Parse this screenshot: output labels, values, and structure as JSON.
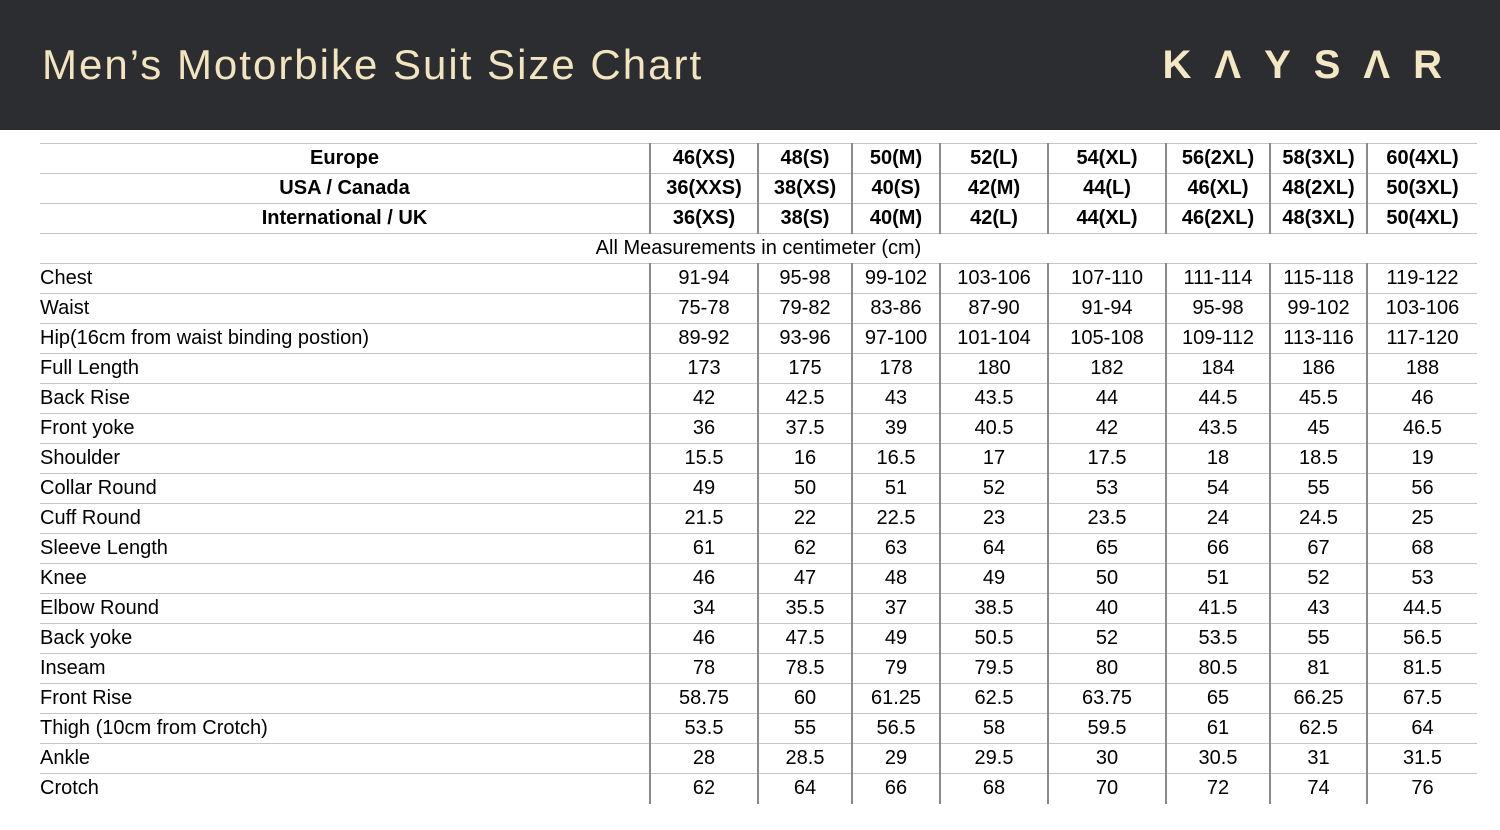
{
  "header": {
    "title": "Men’s Motorbike Suit Size Chart",
    "brand": "KAYSAR"
  },
  "colors": {
    "header_bg": "#2b2d31",
    "title_text": "#f1e4bf",
    "brand_text": "#f4e7c3",
    "grid_h": "#c6c6c6",
    "grid_v": "#8a8a8a"
  },
  "chart_data": {
    "type": "table",
    "title": "Men’s Motorbike Suit Size Chart",
    "header_rows": [
      {
        "label": "Europe",
        "values": [
          "46(XS)",
          "48(S)",
          "50(M)",
          "52(L)",
          "54(XL)",
          "56(2XL)",
          "58(3XL)",
          "60(4XL)"
        ]
      },
      {
        "label": "USA / Canada",
        "values": [
          "36(XXS)",
          "38(XS)",
          "40(S)",
          "42(M)",
          "44(L)",
          "46(XL)",
          "48(2XL)",
          "50(3XL)"
        ]
      },
      {
        "label": "International / UK",
        "values": [
          "36(XS)",
          "38(S)",
          "40(M)",
          "42(L)",
          "44(XL)",
          "46(2XL)",
          "48(3XL)",
          "50(4XL)"
        ]
      }
    ],
    "unit_note": "All Measurements in centimeter (cm)",
    "rows": [
      {
        "label": "Chest",
        "values": [
          "91-94",
          "95-98",
          "99-102",
          "103-106",
          "107-110",
          "111-114",
          "115-118",
          "119-122"
        ]
      },
      {
        "label": "Waist",
        "values": [
          "75-78",
          "79-82",
          "83-86",
          "87-90",
          "91-94",
          "95-98",
          "99-102",
          "103-106"
        ]
      },
      {
        "label": "Hip(16cm from waist binding postion)",
        "values": [
          "89-92",
          "93-96",
          "97-100",
          "101-104",
          "105-108",
          "109-112",
          "113-116",
          "117-120"
        ]
      },
      {
        "label": "Full Length",
        "values": [
          "173",
          "175",
          "178",
          "180",
          "182",
          "184",
          "186",
          "188"
        ]
      },
      {
        "label": "Back Rise",
        "values": [
          "42",
          "42.5",
          "43",
          "43.5",
          "44",
          "44.5",
          "45.5",
          "46"
        ]
      },
      {
        "label": "Front yoke",
        "values": [
          "36",
          "37.5",
          "39",
          "40.5",
          "42",
          "43.5",
          "45",
          "46.5"
        ]
      },
      {
        "label": "Shoulder",
        "values": [
          "15.5",
          "16",
          "16.5",
          "17",
          "17.5",
          "18",
          "18.5",
          "19"
        ]
      },
      {
        "label": "Collar Round",
        "values": [
          "49",
          "50",
          "51",
          "52",
          "53",
          "54",
          "55",
          "56"
        ]
      },
      {
        "label": "Cuff Round",
        "values": [
          "21.5",
          "22",
          "22.5",
          "23",
          "23.5",
          "24",
          "24.5",
          "25"
        ]
      },
      {
        "label": "Sleeve Length",
        "values": [
          "61",
          "62",
          "63",
          "64",
          "65",
          "66",
          "67",
          "68"
        ]
      },
      {
        "label": "Knee",
        "values": [
          "46",
          "47",
          "48",
          "49",
          "50",
          "51",
          "52",
          "53"
        ]
      },
      {
        "label": "Elbow Round",
        "values": [
          "34",
          "35.5",
          "37",
          "38.5",
          "40",
          "41.5",
          "43",
          "44.5"
        ]
      },
      {
        "label": "Back yoke",
        "values": [
          "46",
          "47.5",
          "49",
          "50.5",
          "52",
          "53.5",
          "55",
          "56.5"
        ]
      },
      {
        "label": "Inseam",
        "values": [
          "78",
          "78.5",
          "79",
          "79.5",
          "80",
          "80.5",
          "81",
          "81.5"
        ]
      },
      {
        "label": "Front Rise",
        "values": [
          "58.75",
          "60",
          "61.25",
          "62.5",
          "63.75",
          "65",
          "66.25",
          "67.5"
        ]
      },
      {
        "label": "Thigh (10cm from Crotch)",
        "values": [
          "53.5",
          "55",
          "56.5",
          "58",
          "59.5",
          "61",
          "62.5",
          "64"
        ]
      },
      {
        "label": "Ankle",
        "values": [
          "28",
          "28.5",
          "29",
          "29.5",
          "30",
          "30.5",
          "31",
          "31.5"
        ]
      },
      {
        "label": "Crotch",
        "values": [
          "62",
          "64",
          "66",
          "68",
          "70",
          "72",
          "74",
          "76"
        ]
      }
    ]
  }
}
